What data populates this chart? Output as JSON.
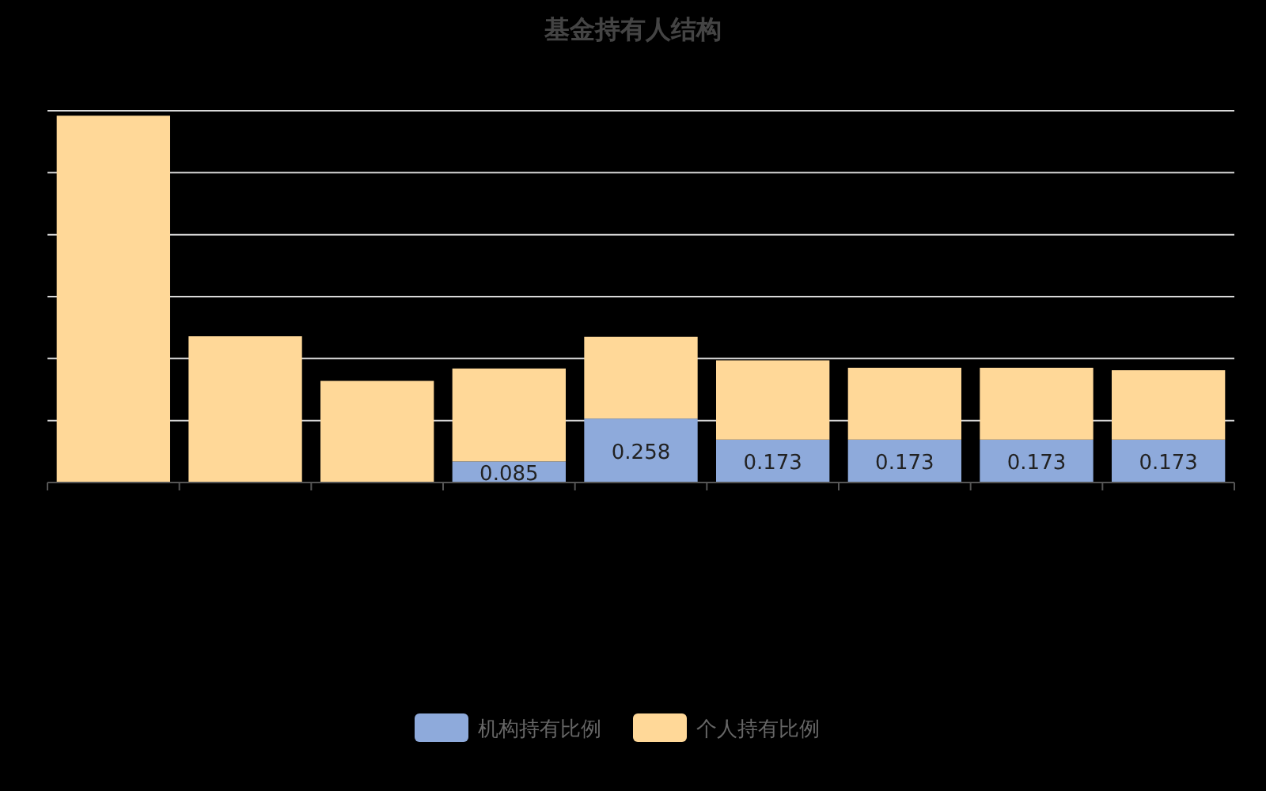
{
  "chart_data": {
    "type": "bar",
    "title": "基金持有人结构",
    "stacked": true,
    "categories": [
      null,
      null,
      null,
      null,
      null,
      null,
      null,
      null,
      null
    ],
    "series": [
      {
        "name": "机构持有比例",
        "color": "#8eaadb",
        "values": [
          null,
          null,
          null,
          0.085,
          0.258,
          0.173,
          0.173,
          0.173,
          0.173
        ],
        "value_labels": [
          null,
          null,
          null,
          "0.085",
          "0.258",
          "0.173",
          "0.173",
          "0.173",
          "0.173"
        ]
      },
      {
        "name": "个人持有比例",
        "color": "#ffd898",
        "values": [
          1.48,
          0.59,
          0.41,
          0.375,
          0.33,
          0.32,
          0.29,
          0.29,
          0.28
        ]
      }
    ],
    "ylim": [
      0,
      1.5
    ],
    "yticks": [
      {
        "value": 0,
        "label": null
      },
      {
        "value": 0.25,
        "label": null
      },
      {
        "value": 0.5,
        "label": null
      },
      {
        "value": 0.75,
        "label": null
      },
      {
        "value": 1,
        "label": null
      },
      {
        "value": 1.25,
        "label": null
      },
      {
        "value": 1.5,
        "label": null
      }
    ],
    "grid": "y",
    "legend": "bottom"
  }
}
